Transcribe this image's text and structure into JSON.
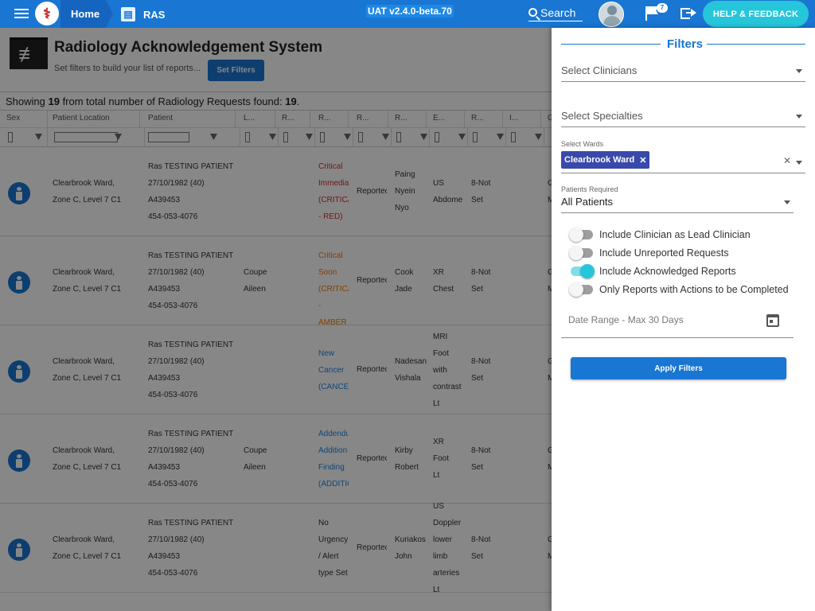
{
  "header": {
    "home_label": "Home",
    "app_label": "RAS",
    "version": "UAT v2.4.0-beta.70",
    "search_label": "Search",
    "notification_count": "7",
    "help_label": "HELP & FEEDBACK",
    "accent": "#1976d2",
    "help_color": "#26c6da"
  },
  "page": {
    "title": "Radiology Acknowledgement System",
    "subtitle": "Set filters to build your list of reports...",
    "set_filters_label": "Set Filters",
    "showing_prefix": "Showing ",
    "showing_count": "19",
    "showing_middle": " from total number of Radiology Requests found: ",
    "showing_total": "19",
    "showing_suffix": "."
  },
  "table": {
    "columns": [
      "Sex",
      "Patient Location",
      "Patient",
      "L...",
      "R...",
      "R...",
      "R...",
      "R...",
      "E...",
      "R...",
      "I...",
      "G"
    ],
    "rows": [
      {
        "location": "Clearbrook Ward,\nZone C, Level 7 C1",
        "patient": "Ras TESTING PATIENT\n27/10/1982 (40)\nA439453\n454-053-4076",
        "lead": "",
        "priority": "Critical\nImmedia\n(CRITICA\n- RED)",
        "priority_color": "red",
        "reported": "Reportec",
        "radiologist": "Paing\nNyein\nNyo",
        "exam": "US\nAbdome",
        "status": "8-Not\nSet",
        "g": "G\nM"
      },
      {
        "location": "Clearbrook Ward,\nZone C, Level 7 C1",
        "patient": "Ras TESTING PATIENT\n27/10/1982 (40)\nA439453\n454-053-4076",
        "lead": "Coupe\nAileen",
        "priority": "Critical\nSoon\n(CRITICA\n- AMBER",
        "priority_color": "orange",
        "reported": "Reportec",
        "radiologist": "Cook\nJade",
        "exam": "XR\nChest",
        "status": "8-Not\nSet",
        "g": "G\nM"
      },
      {
        "location": "Clearbrook Ward,\nZone C, Level 7 C1",
        "patient": "Ras TESTING PATIENT\n27/10/1982 (40)\nA439453\n454-053-4076",
        "lead": "",
        "priority": "New\nCancer\n(CANCEF",
        "priority_color": "blue",
        "reported": "Reportec",
        "radiologist": "Nadesan\nVishala",
        "exam": "MRI\nFoot\nwith\ncontrast\nLt",
        "status": "8-Not\nSet",
        "g": "G\nM"
      },
      {
        "location": "Clearbrook Ward,\nZone C, Level 7 C1",
        "patient": "Ras TESTING PATIENT\n27/10/1982 (40)\nA439453\n454-053-4076",
        "lead": "Coupe\nAileen",
        "priority": "Addendu\nAddition\nFinding\n(ADDITIC",
        "priority_color": "blue",
        "reported": "Reportec",
        "radiologist": "Kirby\nRobert",
        "exam": "XR\nFoot\nLt",
        "status": "8-Not\nSet",
        "g": "G\nM"
      },
      {
        "location": "Clearbrook Ward,\nZone C, Level 7 C1",
        "patient": "Ras TESTING PATIENT\n27/10/1982 (40)\nA439453\n454-053-4076",
        "lead": "",
        "priority": "No\nUrgency\n/ Alert\ntype Set",
        "priority_color": "normal",
        "reported": "Reportec",
        "radiologist": "Kuriakos\nJohn",
        "exam": "US\nDoppler\nlower\nlimb\narteries\nLt",
        "status": "8-Not\nSet",
        "g": "G\nM"
      }
    ]
  },
  "filters": {
    "title": "Filters",
    "clinicians_placeholder": "Select Clinicians",
    "specialties_placeholder": "Select Specialties",
    "wards_label": "Select Wards",
    "ward_chip": "Clearbrook Ward",
    "patients_label": "Patients Required",
    "patients_value": "All Patients",
    "toggles": [
      {
        "label": "Include Clinician as Lead Clinician",
        "on": false
      },
      {
        "label": "Include Unreported Requests",
        "on": false
      },
      {
        "label": "Include Acknowledged Reports",
        "on": true
      },
      {
        "label": "Only Reports with Actions to be Completed",
        "on": false
      }
    ],
    "date_placeholder": "Date Range - Max 30 Days",
    "apply_label": "Apply Filters"
  }
}
